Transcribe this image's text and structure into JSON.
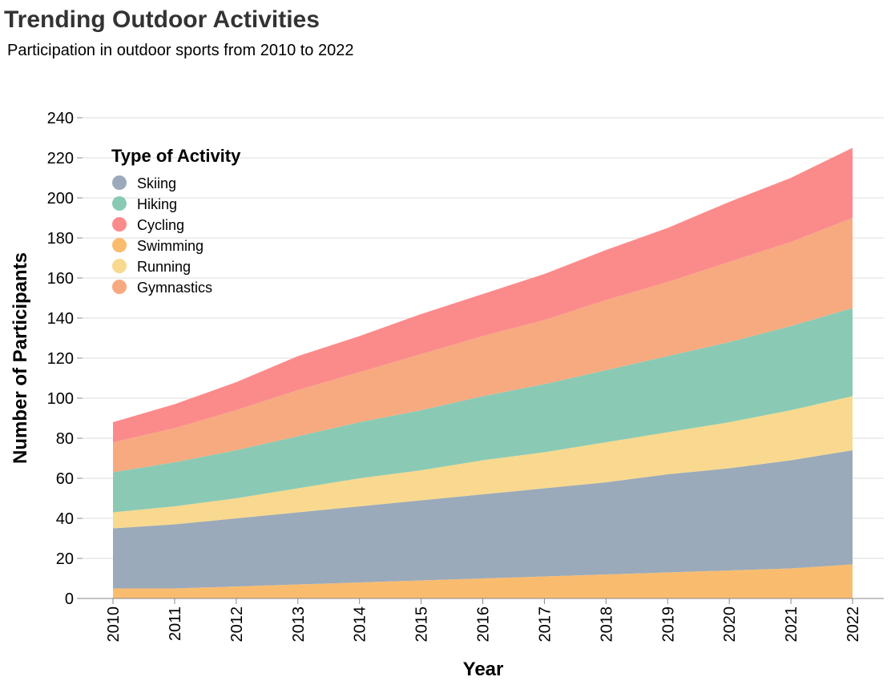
{
  "chart_data": {
    "type": "area",
    "stacked": true,
    "title": "Trending Outdoor Activities",
    "subtitle": "Participation in outdoor sports from 2010 to 2022",
    "xlabel": "Year",
    "ylabel": "Number of Participants",
    "x": [
      "2010",
      "2011",
      "2012",
      "2013",
      "2014",
      "2015",
      "2016",
      "2017",
      "2018",
      "2019",
      "2020",
      "2021",
      "2022"
    ],
    "ylim": [
      0,
      240
    ],
    "yticks": [
      0,
      20,
      40,
      60,
      80,
      100,
      120,
      140,
      160,
      180,
      200,
      220,
      240
    ],
    "grid": true,
    "legend": {
      "title": "Type of Activity",
      "position": "top-left",
      "items": [
        "Skiing",
        "Hiking",
        "Cycling",
        "Swimming",
        "Running",
        "Gymnastics"
      ]
    },
    "stack_order": [
      "Swimming",
      "Skiing",
      "Running",
      "Hiking",
      "Gymnastics",
      "Cycling"
    ],
    "series": [
      {
        "name": "Swimming",
        "color": "#f9bc6f",
        "values": [
          5,
          5,
          6,
          7,
          8,
          9,
          10,
          11,
          12,
          13,
          14,
          15,
          17
        ]
      },
      {
        "name": "Skiing",
        "color": "#9aaaba",
        "values": [
          30,
          32,
          34,
          36,
          38,
          40,
          42,
          44,
          46,
          49,
          51,
          54,
          57
        ]
      },
      {
        "name": "Running",
        "color": "#f9d98f",
        "values": [
          8,
          9,
          10,
          12,
          14,
          15,
          17,
          18,
          20,
          21,
          23,
          25,
          27
        ]
      },
      {
        "name": "Hiking",
        "color": "#8acab5",
        "values": [
          20,
          22,
          24,
          26,
          28,
          30,
          32,
          34,
          36,
          38,
          40,
          42,
          44
        ]
      },
      {
        "name": "Gymnastics",
        "color": "#f7aa80",
        "values": [
          15,
          17,
          20,
          23,
          25,
          28,
          30,
          32,
          35,
          37,
          40,
          42,
          45
        ]
      },
      {
        "name": "Cycling",
        "color": "#fb8b8b",
        "values": [
          10,
          12,
          14,
          17,
          18,
          20,
          21,
          23,
          25,
          27,
          30,
          32,
          35
        ]
      }
    ]
  }
}
